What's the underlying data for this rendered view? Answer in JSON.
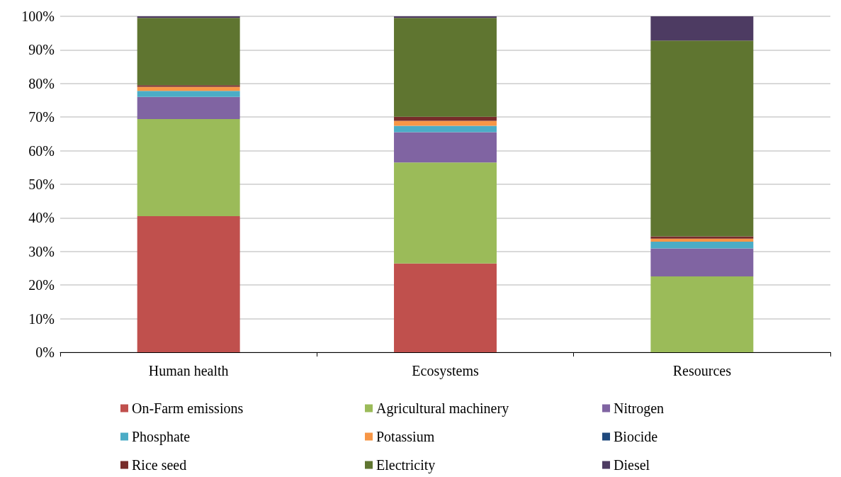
{
  "chart_data": {
    "type": "bar",
    "stacked": true,
    "categories": [
      "Human health",
      "Ecosystems",
      "Resources"
    ],
    "series": [
      {
        "name": "On-Farm emissions",
        "color": "#c0504d",
        "values": [
          40.5,
          26.4,
          0
        ]
      },
      {
        "name": "Agricultural machinery",
        "color": "#9bbb59",
        "values": [
          28.9,
          30.1,
          22.6
        ]
      },
      {
        "name": "Nitrogen",
        "color": "#8064a2",
        "values": [
          6.6,
          9.0,
          8.3
        ]
      },
      {
        "name": "Phosphate",
        "color": "#4bacc6",
        "values": [
          1.8,
          1.9,
          2.0
        ]
      },
      {
        "name": "Potassium",
        "color": "#f79646",
        "values": [
          1.2,
          1.5,
          0.9
        ]
      },
      {
        "name": "Biocide",
        "color": "#1f497d",
        "values": [
          0,
          0,
          0
        ]
      },
      {
        "name": "Rice seed",
        "color": "#772c2a",
        "values": [
          0.5,
          1.2,
          0.7
        ]
      },
      {
        "name": "Electricity",
        "color": "#5f7530",
        "values": [
          20.0,
          29.4,
          58.3
        ]
      },
      {
        "name": "Diesel",
        "color": "#4d3b62",
        "values": [
          0.5,
          0.5,
          7.2
        ]
      }
    ],
    "ylim": [
      0,
      100
    ],
    "yticks": [
      {
        "value": 0,
        "label": "0%"
      },
      {
        "value": 10,
        "label": "10%"
      },
      {
        "value": 20,
        "label": "20%"
      },
      {
        "value": 30,
        "label": "30%"
      },
      {
        "value": 40,
        "label": "40%"
      },
      {
        "value": 50,
        "label": "50%"
      },
      {
        "value": 60,
        "label": "60%"
      },
      {
        "value": 70,
        "label": "70%"
      },
      {
        "value": 80,
        "label": "80%"
      },
      {
        "value": 90,
        "label": "90%"
      },
      {
        "value": 100,
        "label": "100%"
      }
    ],
    "grid": "y",
    "legend": "bottom"
  }
}
